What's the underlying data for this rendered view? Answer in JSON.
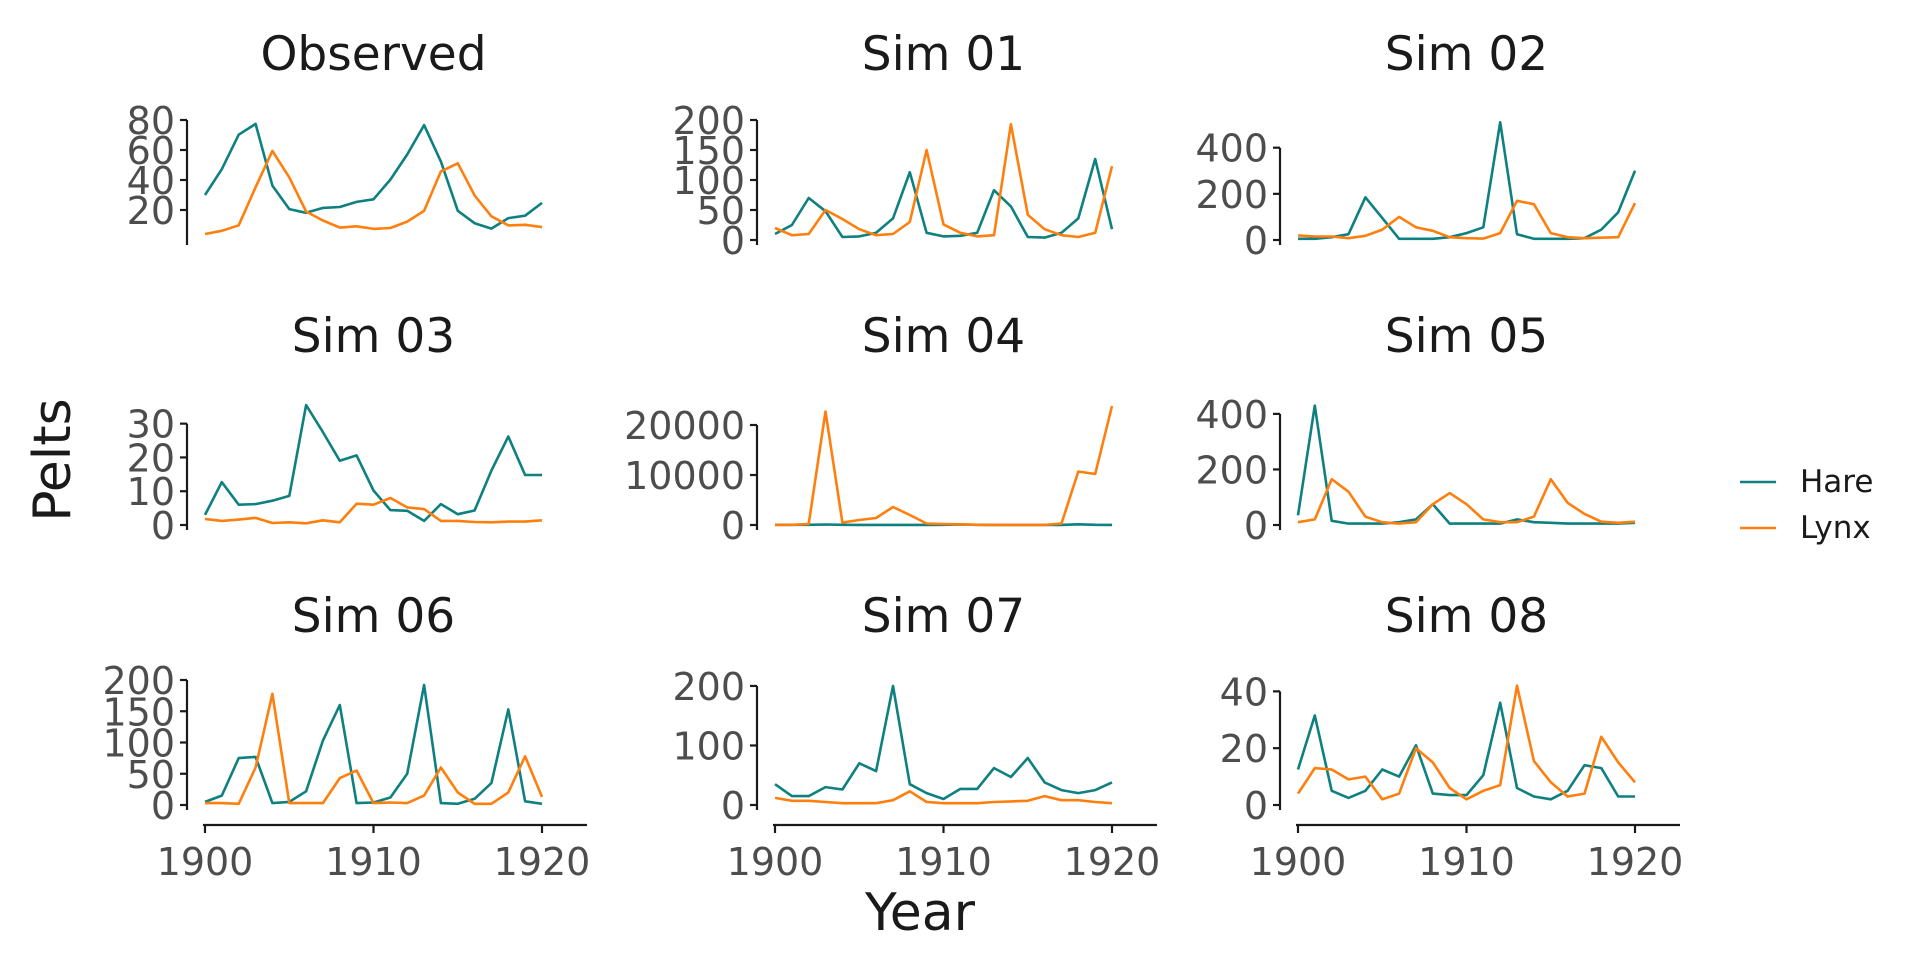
{
  "chart_data": {
    "type": "line",
    "xlabel": "Year",
    "ylabel": "Pelts",
    "xlim": [
      1900,
      1920
    ],
    "x_ticks": [
      1900,
      1910,
      1920
    ],
    "x": [
      1900,
      1901,
      1902,
      1903,
      1904,
      1905,
      1906,
      1907,
      1908,
      1909,
      1910,
      1911,
      1912,
      1913,
      1914,
      1915,
      1916,
      1917,
      1918,
      1919,
      1920
    ],
    "grid": false,
    "legend_position": "right",
    "legend": [
      {
        "name": "Hare",
        "color": "#0f8080"
      },
      {
        "name": "Lynx",
        "color": "#ff7f0e"
      }
    ],
    "panels": [
      {
        "title": "Observed",
        "ylim": [
          0,
          80
        ],
        "y_ticks": [
          20,
          40,
          60,
          80
        ],
        "series": [
          {
            "name": "Hare",
            "values": [
              30,
              47.2,
              70.2,
              77.4,
              36.3,
              20.6,
              18.1,
              21.4,
              22,
              25.4,
              27.1,
              40.3,
              57,
              76.6,
              52.3,
              19.5,
              11.2,
              7.6,
              14.6,
              16.2,
              24.7
            ]
          },
          {
            "name": "Lynx",
            "values": [
              4,
              6.1,
              9.8,
              35.2,
              59.4,
              41.7,
              19,
              13,
              8.3,
              9.1,
              7.4,
              8,
              12.3,
              19.5,
              45.7,
              51.1,
              29.7,
              15.8,
              9.7,
              10.1,
              8.6
            ]
          }
        ]
      },
      {
        "title": "Sim 01",
        "ylim": [
          0,
          200
        ],
        "y_ticks": [
          0,
          50,
          100,
          150,
          200
        ],
        "series": [
          {
            "name": "Hare",
            "values": [
              10,
              25,
              70,
              48,
              5,
              6,
              12,
              36,
              113,
              12,
              6,
              7,
              12,
              83,
              56,
              5,
              4,
              12,
              36,
              135,
              18
            ]
          },
          {
            "name": "Lynx",
            "values": [
              20,
              8,
              10,
              50,
              35,
              18,
              8,
              10,
              30,
              150,
              26,
              12,
              6,
              8,
              193,
              42,
              18,
              8,
              5,
              12,
              123
            ]
          }
        ]
      },
      {
        "title": "Sim 02",
        "ylim": [
          0,
          520
        ],
        "y_ticks": [
          0,
          200,
          400
        ],
        "series": [
          {
            "name": "Hare",
            "values": [
              5,
              5,
              12,
              25,
              185,
              95,
              5,
              5,
              5,
              12,
              30,
              55,
              510,
              25,
              5,
              5,
              5,
              8,
              45,
              120,
              300
            ]
          },
          {
            "name": "Lynx",
            "values": [
              20,
              15,
              15,
              8,
              18,
              45,
              100,
              55,
              40,
              12,
              8,
              6,
              30,
              170,
              155,
              30,
              12,
              8,
              10,
              12,
              160
            ]
          }
        ]
      },
      {
        "title": "Sim 03",
        "ylim": [
          0,
          37
        ],
        "y_ticks": [
          0,
          10,
          20,
          30
        ],
        "series": [
          {
            "name": "Hare",
            "values": [
              3,
              12.7,
              6,
              6.2,
              7.2,
              8.6,
              35.5,
              27.5,
              19,
              20.6,
              10.2,
              4.4,
              4.2,
              1.2,
              6.2,
              3.2,
              4.3,
              16.1,
              26.2,
              14.8,
              14.8
            ]
          },
          {
            "name": "Lynx",
            "values": [
              1.8,
              1.2,
              1.6,
              2.1,
              0.6,
              0.8,
              0.5,
              1.4,
              0.8,
              6.3,
              6,
              8,
              5.2,
              4.7,
              1.2,
              1.2,
              0.9,
              0.8,
              1,
              1,
              1.4
            ]
          }
        ]
      },
      {
        "title": "Sim 04",
        "ylim": [
          0,
          25000
        ],
        "y_ticks": [
          0,
          10000,
          20000
        ],
        "series": [
          {
            "name": "Hare",
            "values": [
              50,
              50,
              50,
              100,
              50,
              20,
              20,
              20,
              20,
              20,
              50,
              100,
              50,
              20,
              20,
              20,
              20,
              20,
              150,
              50,
              20
            ]
          },
          {
            "name": "Lynx",
            "values": [
              20,
              50,
              200,
              22700,
              500,
              1000,
              1400,
              3600,
              2000,
              300,
              200,
              150,
              50,
              20,
              20,
              20,
              20,
              300,
              10700,
              10200,
              23800
            ]
          }
        ]
      },
      {
        "title": "Sim 05",
        "ylim": [
          0,
          450
        ],
        "y_ticks": [
          0,
          200,
          400
        ],
        "series": [
          {
            "name": "Hare",
            "values": [
              35,
              430,
              15,
              5,
              5,
              5,
              10,
              20,
              75,
              5,
              5,
              5,
              5,
              20,
              10,
              8,
              5,
              5,
              5,
              5,
              8
            ]
          },
          {
            "name": "Lynx",
            "values": [
              10,
              20,
              165,
              120,
              30,
              10,
              5,
              10,
              75,
              115,
              75,
              20,
              10,
              10,
              30,
              165,
              80,
              40,
              12,
              8,
              12
            ]
          }
        ]
      },
      {
        "title": "Sim 06",
        "ylim": [
          0,
          200
        ],
        "y_ticks": [
          0,
          50,
          100,
          150,
          200
        ],
        "series": [
          {
            "name": "Hare",
            "values": [
              5,
              15,
              75,
              77,
              3,
              5,
              22,
              103,
              160,
              3,
              4,
              12,
              50,
              192,
              3,
              2,
              10,
              35,
              153,
              6,
              2
            ]
          },
          {
            "name": "Lynx",
            "values": [
              3,
              3,
              2,
              60,
              178,
              3,
              3,
              3,
              43,
              55,
              3,
              4,
              3,
              15,
              60,
              20,
              2,
              2,
              20,
              78,
              13
            ]
          }
        ]
      },
      {
        "title": "Sim 07",
        "ylim": [
          0,
          210
        ],
        "y_ticks": [
          0,
          100,
          200
        ],
        "series": [
          {
            "name": "Hare",
            "values": [
              35,
              15,
              15,
              30,
              26,
              70,
              57,
              200,
              35,
              20,
              10,
              27,
              27,
              62,
              47,
              79,
              38,
              25,
              20,
              25,
              38
            ]
          },
          {
            "name": "Lynx",
            "values": [
              12,
              7,
              7,
              5,
              3,
              3,
              3,
              8,
              23,
              5,
              3,
              3,
              3,
              5,
              6,
              7,
              15,
              8,
              8,
              5,
              3
            ]
          }
        ]
      },
      {
        "title": "Sim 08",
        "ylim": [
          0,
          44
        ],
        "y_ticks": [
          0,
          20,
          40
        ],
        "series": [
          {
            "name": "Hare",
            "values": [
              12.5,
              31.5,
              5,
              2.5,
              5,
              12.5,
              10,
              21,
              4,
              3.5,
              3.5,
              10.5,
              36,
              6,
              3,
              2,
              5,
              14,
              13,
              3,
              3
            ]
          },
          {
            "name": "Lynx",
            "values": [
              4,
              13,
              12.5,
              9,
              10,
              2,
              4,
              20,
              15,
              6,
              2,
              5,
              7,
              42,
              15.5,
              8,
              3,
              4,
              24,
              15,
              8
            ]
          }
        ]
      }
    ]
  }
}
